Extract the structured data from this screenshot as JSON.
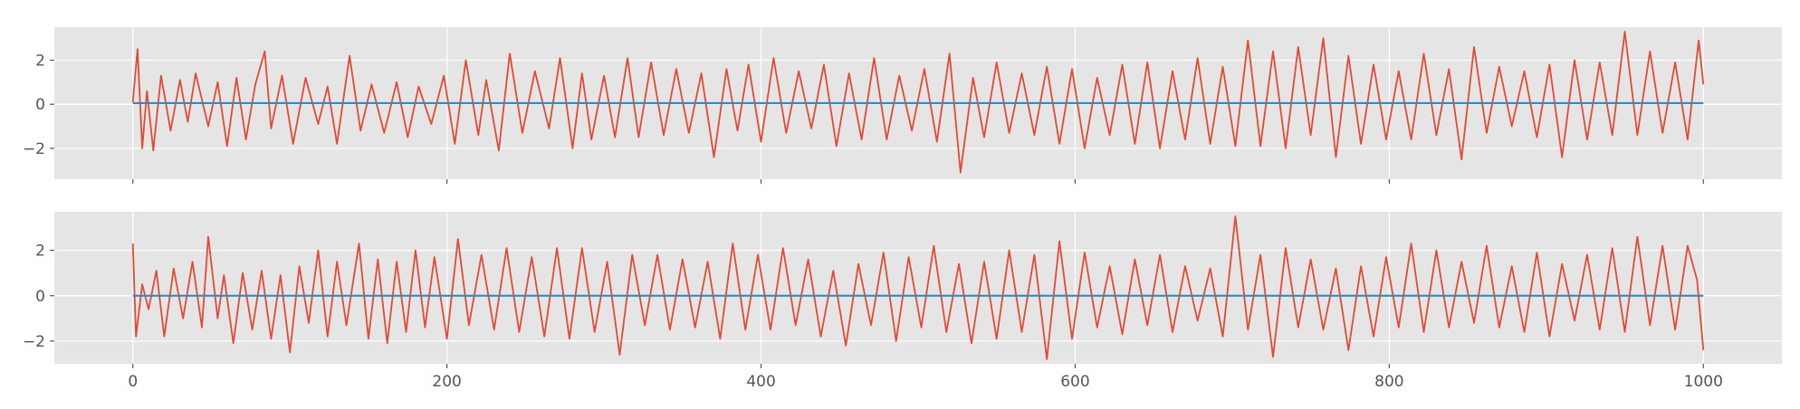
{
  "chart_data": [
    {
      "type": "line",
      "title": "",
      "xlabel": "",
      "ylabel": "",
      "xlim": [
        -50,
        1050
      ],
      "ylim": [
        -3.4,
        3.5
      ],
      "x_ticks": [
        0,
        200,
        400,
        600,
        800,
        1000
      ],
      "x_tick_labels_shown": false,
      "y_ticks": [
        -2,
        0,
        2
      ],
      "y_tick_labels": [
        "−2",
        "0",
        "2"
      ],
      "grid": true,
      "background": "#e5e5e5",
      "series": [
        {
          "color": "#e24a33",
          "x": [
            0,
            3,
            6,
            9,
            13,
            18,
            24,
            30,
            35,
            40,
            48,
            54,
            60,
            66,
            72,
            78,
            84,
            88,
            95,
            102,
            110,
            118,
            124,
            130,
            138,
            145,
            152,
            160,
            168,
            175,
            182,
            190,
            198,
            205,
            212,
            220,
            225,
            233,
            240,
            248,
            256,
            265,
            272,
            280,
            286,
            292,
            300,
            307,
            315,
            322,
            330,
            338,
            346,
            354,
            362,
            370,
            378,
            385,
            392,
            400,
            408,
            416,
            424,
            432,
            440,
            448,
            456,
            464,
            472,
            480,
            488,
            496,
            504,
            512,
            520,
            527,
            535,
            542,
            550,
            558,
            566,
            574,
            582,
            590,
            598,
            606,
            614,
            622,
            630,
            638,
            646,
            654,
            662,
            670,
            678,
            686,
            694,
            702,
            710,
            718,
            726,
            734,
            742,
            750,
            758,
            766,
            774,
            782,
            790,
            798,
            806,
            814,
            822,
            830,
            838,
            846,
            854,
            862,
            870,
            878,
            886,
            894,
            902,
            910,
            918,
            926,
            934,
            942,
            950,
            958,
            966,
            974,
            982,
            990,
            997,
            1000
          ],
          "y": [
            0.1,
            2.5,
            -2.0,
            0.6,
            -2.1,
            1.3,
            -1.2,
            1.1,
            -0.8,
            1.4,
            -1.0,
            1.0,
            -1.9,
            1.2,
            -1.6,
            0.9,
            2.4,
            -1.1,
            1.3,
            -1.8,
            1.2,
            -0.9,
            0.8,
            -1.8,
            2.2,
            -1.2,
            0.9,
            -1.3,
            1.0,
            -1.5,
            0.8,
            -0.9,
            1.3,
            -1.8,
            2.0,
            -1.4,
            1.1,
            -2.1,
            2.3,
            -1.3,
            1.5,
            -1.1,
            2.1,
            -2.0,
            1.4,
            -1.6,
            1.3,
            -1.5,
            2.1,
            -1.5,
            1.9,
            -1.4,
            1.6,
            -1.3,
            1.4,
            -2.4,
            1.6,
            -1.2,
            1.8,
            -1.7,
            2.1,
            -1.3,
            1.5,
            -1.1,
            1.8,
            -1.9,
            1.4,
            -1.6,
            2.1,
            -1.6,
            1.3,
            -1.2,
            1.6,
            -1.7,
            2.3,
            -3.1,
            1.2,
            -1.5,
            1.9,
            -1.3,
            1.4,
            -1.4,
            1.7,
            -1.8,
            1.6,
            -2.0,
            1.2,
            -1.4,
            1.8,
            -1.8,
            1.9,
            -2.0,
            1.5,
            -1.6,
            2.1,
            -1.8,
            1.7,
            -1.9,
            2.9,
            -1.9,
            2.4,
            -2.0,
            2.6,
            -1.4,
            3.0,
            -2.4,
            2.2,
            -1.8,
            1.8,
            -1.6,
            1.5,
            -1.6,
            2.3,
            -1.4,
            1.6,
            -2.5,
            2.6,
            -1.3,
            1.7,
            -1.0,
            1.5,
            -1.5,
            1.8,
            -2.4,
            2.0,
            -1.6,
            1.9,
            -1.4,
            3.3,
            -1.4,
            2.4,
            -1.3,
            1.9,
            -1.6,
            2.9,
            0.9
          ]
        },
        {
          "color": "#348abd",
          "x": [
            0,
            1000
          ],
          "y": [
            0.05,
            0.05
          ]
        }
      ]
    },
    {
      "type": "line",
      "title": "",
      "xlabel": "",
      "ylabel": "",
      "xlim": [
        -50,
        1050
      ],
      "ylim": [
        -3.0,
        3.7
      ],
      "x_ticks": [
        0,
        200,
        400,
        600,
        800,
        1000
      ],
      "x_tick_labels": [
        "0",
        "200",
        "400",
        "600",
        "800",
        "1000"
      ],
      "y_ticks": [
        -2,
        0,
        2
      ],
      "y_tick_labels": [
        "−2",
        "0",
        "2"
      ],
      "grid": true,
      "background": "#e5e5e5",
      "series": [
        {
          "color": "#e24a33",
          "x": [
            0,
            2,
            6,
            10,
            15,
            20,
            26,
            32,
            38,
            44,
            48,
            54,
            58,
            64,
            70,
            76,
            82,
            88,
            94,
            100,
            106,
            112,
            118,
            124,
            130,
            136,
            144,
            150,
            156,
            162,
            168,
            174,
            180,
            186,
            192,
            200,
            207,
            214,
            222,
            230,
            238,
            246,
            254,
            262,
            270,
            278,
            286,
            294,
            302,
            310,
            318,
            326,
            334,
            342,
            350,
            358,
            366,
            374,
            382,
            390,
            398,
            406,
            414,
            422,
            430,
            438,
            446,
            454,
            462,
            470,
            478,
            486,
            494,
            502,
            510,
            518,
            526,
            534,
            542,
            550,
            558,
            566,
            574,
            582,
            590,
            598,
            606,
            614,
            622,
            630,
            638,
            646,
            654,
            662,
            670,
            678,
            686,
            694,
            702,
            710,
            718,
            726,
            734,
            742,
            750,
            758,
            766,
            774,
            782,
            790,
            798,
            806,
            814,
            822,
            830,
            838,
            846,
            854,
            862,
            870,
            878,
            886,
            894,
            902,
            910,
            918,
            926,
            934,
            942,
            950,
            958,
            966,
            974,
            982,
            990,
            996,
            1000
          ],
          "y": [
            2.3,
            -1.8,
            0.5,
            -0.6,
            1.1,
            -1.8,
            1.2,
            -1.0,
            1.5,
            -1.4,
            2.6,
            -1.0,
            0.9,
            -2.1,
            1.0,
            -1.5,
            1.1,
            -1.9,
            0.9,
            -2.5,
            1.3,
            -1.2,
            2.0,
            -1.8,
            1.5,
            -1.3,
            2.3,
            -1.9,
            1.6,
            -2.1,
            1.5,
            -1.6,
            2.0,
            -1.4,
            1.7,
            -1.9,
            2.5,
            -1.3,
            1.8,
            -1.5,
            2.1,
            -1.6,
            1.7,
            -1.8,
            2.1,
            -1.9,
            2.1,
            -1.6,
            1.5,
            -2.6,
            1.8,
            -1.3,
            1.8,
            -1.5,
            1.6,
            -1.4,
            1.5,
            -1.9,
            2.3,
            -1.5,
            1.8,
            -1.5,
            2.1,
            -1.3,
            1.6,
            -1.8,
            1.1,
            -2.2,
            1.4,
            -1.3,
            1.9,
            -2.0,
            1.7,
            -1.4,
            2.2,
            -1.6,
            1.4,
            -2.1,
            1.5,
            -1.9,
            2.0,
            -1.6,
            1.8,
            -2.8,
            2.4,
            -1.9,
            1.9,
            -1.4,
            1.3,
            -1.7,
            1.6,
            -1.3,
            1.8,
            -1.6,
            1.3,
            -1.1,
            1.2,
            -1.8,
            3.5,
            -1.5,
            1.8,
            -2.7,
            2.1,
            -1.4,
            1.6,
            -1.5,
            1.2,
            -2.4,
            1.3,
            -1.8,
            1.7,
            -1.4,
            2.3,
            -1.6,
            2.0,
            -1.4,
            1.5,
            -1.2,
            2.2,
            -1.4,
            1.3,
            -1.6,
            1.9,
            -1.8,
            1.4,
            -1.1,
            1.8,
            -1.5,
            2.1,
            -1.6,
            2.6,
            -1.3,
            2.2,
            -1.5,
            2.2,
            0.7,
            -2.4
          ]
        },
        {
          "color": "#348abd",
          "x": [
            0,
            1000
          ],
          "y": [
            0.0,
            0.0
          ]
        }
      ]
    }
  ]
}
